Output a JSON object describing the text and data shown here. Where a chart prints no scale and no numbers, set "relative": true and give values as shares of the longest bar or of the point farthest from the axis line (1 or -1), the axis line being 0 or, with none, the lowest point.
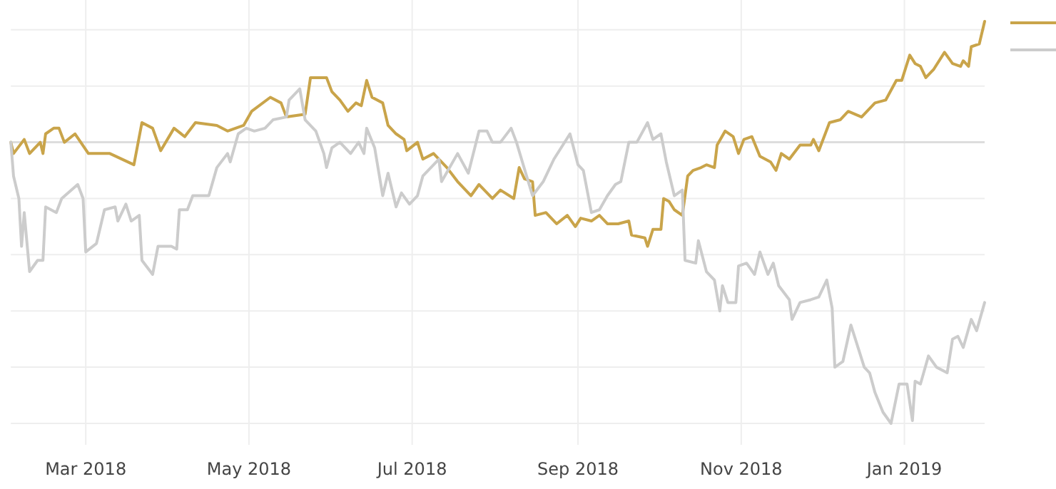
{
  "chart_data": {
    "type": "line",
    "relative": true,
    "grid": true,
    "line_style": "solid",
    "marker": "none",
    "xlim": [
      "2018-02-01",
      "2019-01-31"
    ],
    "xticks": [
      {
        "value": "2018-03-01",
        "label": "Mar 2018"
      },
      {
        "value": "2018-05-01",
        "label": "May 2018"
      },
      {
        "value": "2018-07-01",
        "label": "Jul 2018"
      },
      {
        "value": "2018-09-01",
        "label": "Sep 2018"
      },
      {
        "value": "2018-11-01",
        "label": "Nov 2018"
      },
      {
        "value": "2019-01-01",
        "label": "Jan 2019"
      }
    ],
    "series": [
      {
        "color": "#c9a44a",
        "x": [
          "2018-02-01",
          "2018-02-02",
          "2018-02-06",
          "2018-02-08",
          "2018-02-12",
          "2018-02-13",
          "2018-02-14",
          "2018-02-17",
          "2018-02-19",
          "2018-02-21",
          "2018-02-25",
          "2018-03-02",
          "2018-03-05",
          "2018-03-10",
          "2018-03-19",
          "2018-03-22",
          "2018-03-26",
          "2018-03-29",
          "2018-04-03",
          "2018-04-07",
          "2018-04-11",
          "2018-04-19",
          "2018-04-23",
          "2018-04-26",
          "2018-04-29",
          "2018-05-02",
          "2018-05-09",
          "2018-05-13",
          "2018-05-15",
          "2018-05-22",
          "2018-05-24",
          "2018-05-30",
          "2018-06-01",
          "2018-06-04",
          "2018-06-07",
          "2018-06-10",
          "2018-06-12",
          "2018-06-14",
          "2018-06-16",
          "2018-06-20",
          "2018-06-22",
          "2018-06-25",
          "2018-06-28",
          "2018-06-29",
          "2018-07-03",
          "2018-07-05",
          "2018-07-09",
          "2018-07-14",
          "2018-07-18",
          "2018-07-23",
          "2018-07-26",
          "2018-07-31",
          "2018-08-03",
          "2018-08-08",
          "2018-08-10",
          "2018-08-12",
          "2018-08-15",
          "2018-08-16",
          "2018-08-20",
          "2018-08-24",
          "2018-08-28",
          "2018-08-31",
          "2018-09-02",
          "2018-09-06",
          "2018-09-09",
          "2018-09-12",
          "2018-09-16",
          "2018-09-20",
          "2018-09-21",
          "2018-09-26",
          "2018-09-27",
          "2018-09-29",
          "2018-10-02",
          "2018-10-03",
          "2018-10-05",
          "2018-10-07",
          "2018-10-10",
          "2018-10-12",
          "2018-10-14",
          "2018-10-17",
          "2018-10-19",
          "2018-10-22",
          "2018-10-23",
          "2018-10-26",
          "2018-10-29",
          "2018-10-31",
          "2018-11-02",
          "2018-11-05",
          "2018-11-08",
          "2018-11-12",
          "2018-11-14",
          "2018-11-16",
          "2018-11-19",
          "2018-11-23",
          "2018-11-27",
          "2018-11-28",
          "2018-11-30",
          "2018-12-04",
          "2018-12-08",
          "2018-12-11",
          "2018-12-16",
          "2018-12-21",
          "2018-12-25",
          "2018-12-29",
          "2018-12-31",
          "2019-01-03",
          "2019-01-05",
          "2019-01-07",
          "2019-01-09",
          "2019-01-12",
          "2019-01-16",
          "2019-01-19",
          "2019-01-22",
          "2019-01-23",
          "2019-01-25",
          "2019-01-26",
          "2019-01-29",
          "2019-01-31"
        ],
        "values": [
          0,
          -0.04,
          0.01,
          -0.04,
          0,
          -0.04,
          0.03,
          0.05,
          0.05,
          0,
          0.03,
          -0.04,
          -0.04,
          -0.04,
          -0.08,
          0.07,
          0.05,
          -0.03,
          0.05,
          0.02,
          0.07,
          0.06,
          0.04,
          0.05,
          0.06,
          0.11,
          0.16,
          0.14,
          0.09,
          0.1,
          0.23,
          0.23,
          0.18,
          0.15,
          0.11,
          0.14,
          0.13,
          0.22,
          0.16,
          0.14,
          0.06,
          0.03,
          0.01,
          -0.03,
          0,
          -0.06,
          -0.04,
          -0.09,
          -0.14,
          -0.19,
          -0.15,
          -0.2,
          -0.17,
          -0.2,
          -0.09,
          -0.13,
          -0.14,
          -0.26,
          -0.25,
          -0.29,
          -0.26,
          -0.3,
          -0.27,
          -0.28,
          -0.26,
          -0.29,
          -0.29,
          -0.28,
          -0.33,
          -0.34,
          -0.37,
          -0.31,
          -0.31,
          -0.2,
          -0.21,
          -0.24,
          -0.26,
          -0.12,
          -0.1,
          -0.09,
          -0.08,
          -0.09,
          -0.01,
          0.04,
          0.02,
          -0.04,
          0.01,
          0.02,
          -0.05,
          -0.07,
          -0.1,
          -0.04,
          -0.06,
          -0.01,
          -0.01,
          0.01,
          -0.03,
          0.07,
          0.08,
          0.11,
          0.09,
          0.14,
          0.15,
          0.22,
          0.22,
          0.31,
          0.28,
          0.27,
          0.23,
          0.26,
          0.32,
          0.28,
          0.27,
          0.29,
          0.27,
          0.34,
          0.35,
          0.43
        ]
      },
      {
        "color": "#cccccc",
        "x": [
          "2018-02-01",
          "2018-02-02",
          "2018-02-04",
          "2018-02-05",
          "2018-02-06",
          "2018-02-08",
          "2018-02-11",
          "2018-02-13",
          "2018-02-14",
          "2018-02-18",
          "2018-02-20",
          "2018-02-26",
          "2018-02-28",
          "2018-03-01",
          "2018-03-05",
          "2018-03-08",
          "2018-03-12",
          "2018-03-13",
          "2018-03-16",
          "2018-03-18",
          "2018-03-21",
          "2018-03-22",
          "2018-03-26",
          "2018-03-28",
          "2018-04-02",
          "2018-04-04",
          "2018-04-05",
          "2018-04-08",
          "2018-04-10",
          "2018-04-16",
          "2018-04-19",
          "2018-04-23",
          "2018-04-24",
          "2018-04-27",
          "2018-04-30",
          "2018-05-03",
          "2018-05-07",
          "2018-05-10",
          "2018-05-15",
          "2018-05-16",
          "2018-05-20",
          "2018-05-22",
          "2018-05-26",
          "2018-05-29",
          "2018-05-30",
          "2018-06-01",
          "2018-06-04",
          "2018-06-08",
          "2018-06-11",
          "2018-06-13",
          "2018-06-14",
          "2018-06-17",
          "2018-06-20",
          "2018-06-22",
          "2018-06-25",
          "2018-06-27",
          "2018-06-30",
          "2018-07-03",
          "2018-07-05",
          "2018-07-11",
          "2018-07-12",
          "2018-07-18",
          "2018-07-22",
          "2018-07-26",
          "2018-07-29",
          "2018-07-31",
          "2018-08-03",
          "2018-08-07",
          "2018-08-09",
          "2018-08-15",
          "2018-08-19",
          "2018-08-23",
          "2018-08-29",
          "2018-09-01",
          "2018-09-03",
          "2018-09-06",
          "2018-09-09",
          "2018-09-12",
          "2018-09-15",
          "2018-09-17",
          "2018-09-20",
          "2018-09-23",
          "2018-09-27",
          "2018-09-29",
          "2018-10-02",
          "2018-10-04",
          "2018-10-07",
          "2018-10-10",
          "2018-10-11",
          "2018-10-15",
          "2018-10-16",
          "2018-10-19",
          "2018-10-22",
          "2018-10-24",
          "2018-10-25",
          "2018-10-27",
          "2018-10-30",
          "2018-10-31",
          "2018-11-03",
          "2018-11-06",
          "2018-11-08",
          "2018-11-11",
          "2018-11-13",
          "2018-11-15",
          "2018-11-19",
          "2018-11-20",
          "2018-11-23",
          "2018-11-27",
          "2018-11-30",
          "2018-12-03",
          "2018-12-05",
          "2018-12-06",
          "2018-12-09",
          "2018-12-12",
          "2018-12-15",
          "2018-12-17",
          "2018-12-19",
          "2018-12-21",
          "2018-12-24",
          "2018-12-27",
          "2018-12-30",
          "2019-01-02",
          "2019-01-04",
          "2019-01-05",
          "2019-01-07",
          "2019-01-10",
          "2019-01-13",
          "2019-01-17",
          "2019-01-19",
          "2019-01-21",
          "2019-01-23",
          "2019-01-26",
          "2019-01-28",
          "2019-01-31"
        ],
        "values": [
          0,
          -0.12,
          -0.2,
          -0.37,
          -0.25,
          -0.46,
          -0.42,
          -0.42,
          -0.23,
          -0.25,
          -0.2,
          -0.15,
          -0.2,
          -0.39,
          -0.36,
          -0.24,
          -0.23,
          -0.28,
          -0.22,
          -0.28,
          -0.26,
          -0.42,
          -0.47,
          -0.37,
          -0.37,
          -0.38,
          -0.24,
          -0.24,
          -0.19,
          -0.19,
          -0.09,
          -0.04,
          -0.07,
          0.03,
          0.05,
          0.04,
          0.05,
          0.08,
          0.09,
          0.15,
          0.19,
          0.08,
          0.04,
          -0.04,
          -0.09,
          -0.02,
          0,
          -0.04,
          0,
          -0.04,
          0.05,
          -0.02,
          -0.19,
          -0.11,
          -0.23,
          -0.18,
          -0.22,
          -0.19,
          -0.12,
          -0.06,
          -0.14,
          -0.04,
          -0.11,
          0.04,
          0.04,
          0,
          0,
          0.05,
          0,
          -0.19,
          -0.14,
          -0.06,
          0.03,
          -0.08,
          -0.1,
          -0.25,
          -0.24,
          -0.19,
          -0.15,
          -0.14,
          0,
          0,
          0.07,
          0.01,
          0.03,
          -0.07,
          -0.19,
          -0.17,
          -0.42,
          -0.43,
          -0.35,
          -0.46,
          -0.49,
          -0.6,
          -0.51,
          -0.57,
          -0.57,
          -0.44,
          -0.43,
          -0.47,
          -0.39,
          -0.47,
          -0.43,
          -0.51,
          -0.56,
          -0.63,
          -0.57,
          -0.56,
          -0.55,
          -0.49,
          -0.59,
          -0.8,
          -0.78,
          -0.65,
          -0.74,
          -0.8,
          -0.82,
          -0.89,
          -0.96,
          -1,
          -0.86,
          -0.86,
          -0.99,
          -0.85,
          -0.86,
          -0.76,
          -0.8,
          -0.82,
          -0.7,
          -0.69,
          -0.73,
          -0.63,
          -0.67,
          -0.57
        ]
      }
    ]
  }
}
